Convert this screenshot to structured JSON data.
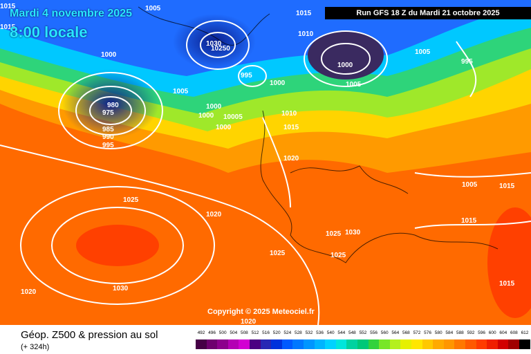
{
  "header": {
    "date_line": "Mardi 4 novembre 2025",
    "time_line": "8:00 locale",
    "run_info": "Run GFS 18 Z du Mardi 21 octobre 2025"
  },
  "footer": {
    "title": "Géop. Z500 & pression au sol",
    "lead": "(+ 324h)",
    "copyright": "Copyright © 2025 Meteociel.fr"
  },
  "scale": {
    "labels": [
      "492",
      "496",
      "500",
      "504",
      "508",
      "512",
      "516",
      "520",
      "524",
      "528",
      "532",
      "536",
      "540",
      "544",
      "548",
      "552",
      "556",
      "560",
      "564",
      "568",
      "572",
      "576",
      "580",
      "584",
      "588",
      "592",
      "596",
      "600",
      "604",
      "608",
      "612"
    ],
    "colors": [
      "#460046",
      "#6e006e",
      "#8c008c",
      "#b400b4",
      "#d200d2",
      "#4b0082",
      "#2828b4",
      "#0032dc",
      "#005aff",
      "#0078ff",
      "#0096ff",
      "#00b4ff",
      "#00d2ff",
      "#00e6dc",
      "#00d2a0",
      "#00c878",
      "#32d23c",
      "#78e628",
      "#b4f01e",
      "#e6f000",
      "#ffe600",
      "#ffc800",
      "#ffaa00",
      "#ff9600",
      "#ff7800",
      "#ff5a00",
      "#ff3c00",
      "#f01e00",
      "#d20000",
      "#a00000",
      "#000000"
    ]
  },
  "isobar_labels": [
    "1005",
    "1015",
    "1015",
    "1000",
    "1030",
    "10250",
    "1015",
    "1010",
    "995",
    "980",
    "975",
    "1000",
    "1005",
    "985",
    "990",
    "995",
    "1000",
    "1000",
    "10005",
    "1000",
    "1010",
    "1015",
    "1000",
    "1005",
    "1005",
    "995",
    "1020",
    "1025",
    "1020",
    "1025",
    "1030",
    "1025",
    "1025",
    "1030",
    "1020",
    "1020",
    "1005",
    "1015",
    "1015",
    "1015"
  ],
  "colors": {
    "title": "#29e7ff",
    "isobar": "#ffffff",
    "low_center": "#3a2a60",
    "high_center": "#ff4000"
  }
}
